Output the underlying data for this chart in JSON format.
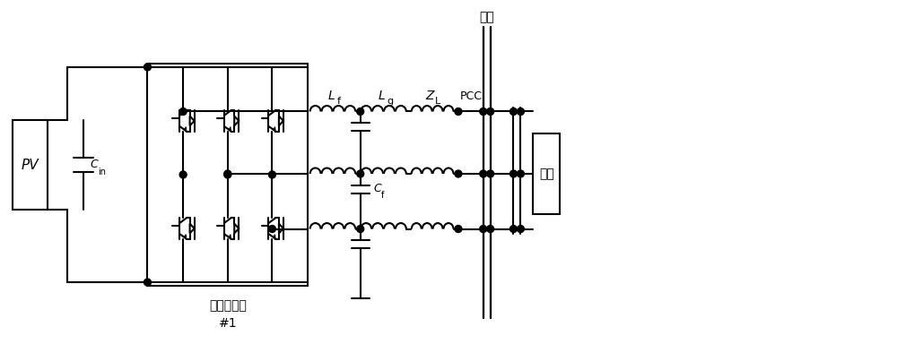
{
  "bg_color": "#ffffff",
  "line_color": "#000000",
  "line_width": 1.5,
  "figsize": [
    10.0,
    3.84
  ],
  "dpi": 100,
  "labels": {
    "PV": "PV",
    "grid": "电网",
    "load_box": "负载",
    "inverter_label": "光伏逆变器",
    "inverter_num": "#1"
  }
}
